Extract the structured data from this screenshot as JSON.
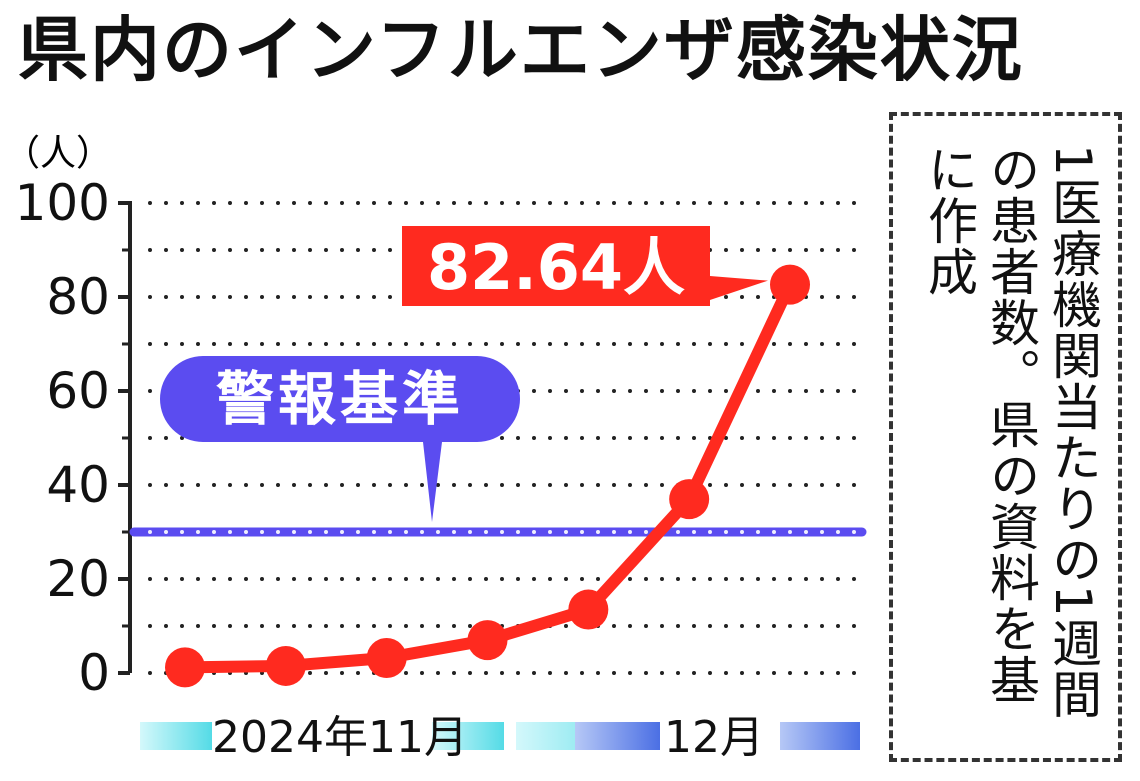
{
  "title": "県内のインフルエンザ感染状況",
  "source_note": "1医療機関当たりの1週間の患者数。県の資料を基に作成",
  "chart_data": {
    "type": "line",
    "title": "県内のインフルエンザ感染状況",
    "ylabel": "（人）",
    "xlabel": "",
    "ylim": [
      0,
      100
    ],
    "yticks": [
      0,
      20,
      40,
      60,
      80,
      100
    ],
    "grid": true,
    "series": [
      {
        "values": [
          1.2,
          1.5,
          3.2,
          7.0,
          13.5,
          37.0,
          82.64
        ],
        "color": "#ff2a1f"
      }
    ],
    "x_period_labels": [
      "2024年11月",
      "12月"
    ],
    "annotation": {
      "text": "82.64人",
      "point_index": 6
    },
    "reference_line": {
      "label": "警報基準",
      "value": 30,
      "color": "#5b4cf0"
    }
  }
}
